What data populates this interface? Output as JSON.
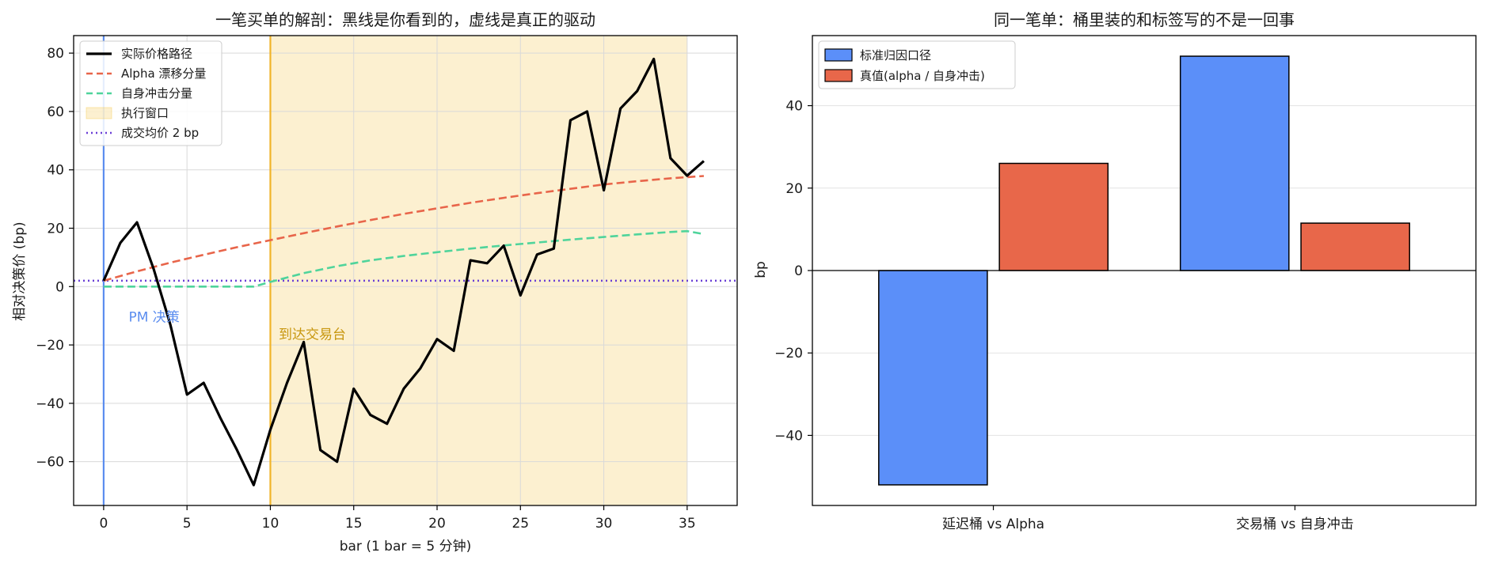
{
  "chart_data": [
    {
      "type": "line",
      "title": "一笔买单的解剖：黑线是你看到的，虚线是真正的驱动",
      "xlabel": "bar (1 bar = 5 分钟)",
      "ylabel": "相对决策价 (bp)",
      "xlim": [
        -1.8,
        38
      ],
      "ylim": [
        -75,
        86
      ],
      "xticks": [
        0,
        5,
        10,
        15,
        20,
        25,
        30,
        35
      ],
      "yticks": [
        -60,
        -40,
        -20,
        0,
        20,
        40,
        60,
        80
      ],
      "ytick_labels": [
        "−60",
        "−40",
        "−20",
        "0",
        "20",
        "40",
        "60",
        "80"
      ],
      "grid": true,
      "legend_position": "top-left",
      "series": [
        {
          "name": "实际价格路径",
          "style": "solid",
          "color": "#000000",
          "x": [
            0,
            1,
            2,
            3,
            4,
            5,
            6,
            7,
            8,
            9,
            10,
            11,
            12,
            13,
            14,
            15,
            16,
            17,
            18,
            19,
            20,
            21,
            22,
            23,
            24,
            25,
            26,
            27,
            28,
            29,
            30,
            31,
            32,
            33,
            34,
            35,
            36
          ],
          "y": [
            2,
            15,
            22,
            6,
            -13,
            -37,
            -33,
            -45,
            -56,
            -68,
            -49,
            -33,
            -19,
            -56,
            -60,
            -35,
            -44,
            -47,
            -35,
            -28,
            -18,
            -22,
            9,
            8,
            14,
            -3,
            11,
            13,
            57,
            60,
            33,
            61,
            67,
            78,
            44,
            38,
            43
          ]
        },
        {
          "name": "Alpha 漂移分量",
          "style": "dashed",
          "color": "#e8654a",
          "x": [
            0,
            2,
            4,
            6,
            8,
            10,
            12,
            14,
            16,
            18,
            20,
            22,
            24,
            26,
            28,
            30,
            32,
            34,
            36
          ],
          "y": [
            2,
            5.2,
            8.2,
            10.9,
            13.5,
            15.9,
            18.3,
            20.6,
            22.8,
            24.9,
            26.8,
            28.7,
            30.4,
            32,
            33.5,
            35,
            36.1,
            37.1,
            37.9
          ]
        },
        {
          "name": "自身冲击分量",
          "style": "dashed",
          "color": "#4fd49b",
          "x": [
            0,
            9,
            10,
            12,
            14,
            16,
            18,
            20,
            22,
            24,
            26,
            28,
            30,
            32,
            34,
            35,
            36
          ],
          "y": [
            0,
            0,
            1.6,
            4.6,
            7,
            9,
            10.5,
            11.8,
            13,
            14.1,
            15.1,
            16.1,
            17,
            17.9,
            18.7,
            19,
            18
          ]
        }
      ],
      "shaded_regions": [
        {
          "name": "执行窗口",
          "x_start": 10,
          "x_end": 35,
          "color": "#f5c542"
        }
      ],
      "reference_lines": [
        {
          "name": "成交均价 2 bp",
          "orientation": "horizontal",
          "value": 2,
          "style": "dotted",
          "color": "#6a3fd6"
        },
        {
          "orientation": "vertical",
          "value": 0,
          "style": "solid",
          "color": "#5b8def"
        },
        {
          "orientation": "vertical",
          "value": 10,
          "style": "solid",
          "color": "#f0b429"
        }
      ],
      "annotations": [
        {
          "text": "PM 决策",
          "x": 1.5,
          "y": -12,
          "color": "#5b8def"
        },
        {
          "text": "到达交易台",
          "x": 10.5,
          "y": -18,
          "color": "#c8970f"
        }
      ]
    },
    {
      "type": "bar",
      "title": "同一笔单：桶里装的和标签写的不是一回事",
      "xlabel": "",
      "ylabel": "bp",
      "ylim": [
        -57,
        57
      ],
      "yticks": [
        -40,
        -20,
        0,
        20,
        40
      ],
      "ytick_labels": [
        "−40",
        "−20",
        "0",
        "20",
        "40"
      ],
      "grid": true,
      "legend_position": "top-left",
      "categories": [
        "延迟桶 vs Alpha",
        "交易桶 vs 自身冲击"
      ],
      "series": [
        {
          "name": "标准归因口径",
          "color": "#5b8ff9",
          "values": [
            -52,
            52
          ]
        },
        {
          "name": "真值(alpha / 自身冲击)",
          "color": "#e8674a",
          "values": [
            26,
            11.5
          ]
        }
      ]
    }
  ]
}
